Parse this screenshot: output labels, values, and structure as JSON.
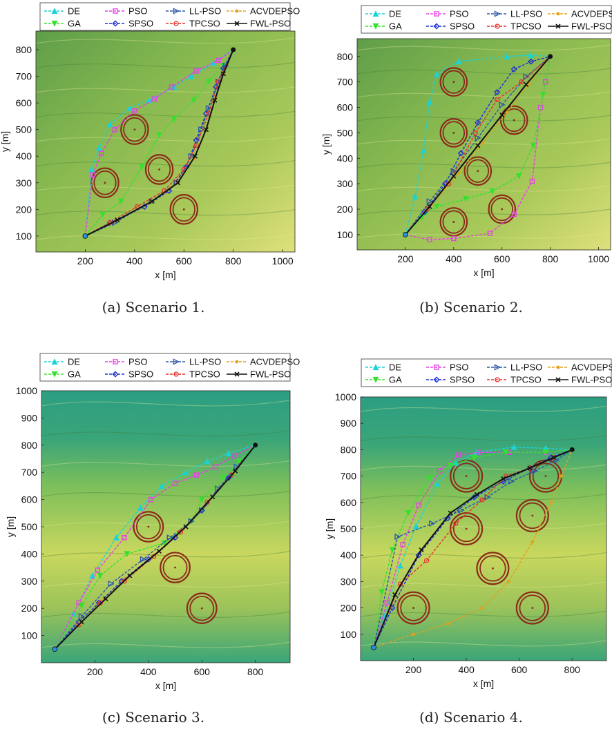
{
  "figure": {
    "legend_entries": [
      "DE",
      "PSO",
      "LL-PSO",
      "ACVDEPSO",
      "GA",
      "SPSO",
      "TPCSO",
      "FWL-PSO"
    ],
    "legend_placement": "top",
    "series_colors": {
      "DE": "#19d3d8",
      "PSO": "#e83ee6",
      "LL-PSO": "#2b57a8",
      "ACVDEPSO": "#e2a01e",
      "GA": "#38e02e",
      "SPSO": "#1f2fd8",
      "TPCSO": "#e8302a",
      "FWL-PSO": "#111111"
    },
    "series_markers": {
      "DE": "triangle-up",
      "PSO": "square",
      "LL-PSO": "triangle-right",
      "ACVDEPSO": "dot",
      "GA": "triangle-down",
      "SPSO": "diamond",
      "TPCSO": "circle",
      "FWL-PSO": "cross"
    },
    "obstacle_color": "#8b2a1a",
    "terrain_colors": [
      "#2c9e82",
      "#7cc05a",
      "#c8d65a",
      "#e9e27a"
    ]
  },
  "chart_data": [
    {
      "type": "line",
      "caption": "(a) Scenario 1.",
      "xlabel": "x [m]",
      "ylabel": "y [m]",
      "xlim": [
        0,
        1050
      ],
      "ylim": [
        40,
        870
      ],
      "xticks": [
        200,
        400,
        600,
        800,
        1000
      ],
      "yticks": [
        100,
        200,
        300,
        400,
        500,
        600,
        700,
        800
      ],
      "start": [
        200,
        100
      ],
      "goal": [
        800,
        800
      ],
      "obstacles": [
        {
          "x": 400,
          "y": 500,
          "r": 55
        },
        {
          "x": 280,
          "y": 300,
          "r": 55
        },
        {
          "x": 500,
          "y": 350,
          "r": 55
        },
        {
          "x": 600,
          "y": 200,
          "r": 55
        }
      ],
      "series": [
        {
          "name": "DE",
          "x": [
            200,
            225,
            255,
            300,
            380,
            460,
            560,
            630,
            720,
            800
          ],
          "y": [
            100,
            350,
            430,
            520,
            580,
            610,
            660,
            700,
            750,
            800
          ]
        },
        {
          "name": "PSO",
          "x": [
            200,
            230,
            265,
            320,
            400,
            480,
            550,
            650,
            740,
            800
          ],
          "y": [
            100,
            330,
            410,
            500,
            570,
            615,
            660,
            720,
            760,
            800
          ]
        },
        {
          "name": "GA",
          "x": [
            200,
            270,
            345,
            430,
            500,
            560,
            640,
            700,
            760,
            800
          ],
          "y": [
            100,
            180,
            230,
            360,
            480,
            540,
            610,
            680,
            740,
            800
          ]
        },
        {
          "name": "SPSO",
          "x": [
            200,
            300,
            440,
            540,
            610,
            650,
            690,
            730,
            760,
            800
          ],
          "y": [
            100,
            150,
            210,
            270,
            360,
            460,
            560,
            660,
            730,
            800
          ]
        },
        {
          "name": "LL-PSO",
          "x": [
            200,
            320,
            470,
            570,
            630,
            670,
            700,
            740,
            770,
            800
          ],
          "y": [
            100,
            150,
            230,
            300,
            400,
            500,
            580,
            680,
            740,
            800
          ]
        },
        {
          "name": "TPCSO",
          "x": [
            200,
            300,
            410,
            520,
            600,
            650,
            700,
            740,
            800
          ],
          "y": [
            100,
            150,
            210,
            270,
            350,
            440,
            560,
            680,
            800
          ]
        },
        {
          "name": "ACVDEPSO",
          "x": [
            200,
            330,
            470,
            570,
            640,
            690,
            730,
            760,
            800
          ],
          "y": [
            100,
            160,
            230,
            300,
            390,
            500,
            620,
            710,
            800
          ]
        },
        {
          "name": "FWL-PSO",
          "x": [
            200,
            330,
            470,
            575,
            645,
            690,
            725,
            760,
            800
          ],
          "y": [
            100,
            160,
            230,
            300,
            400,
            500,
            610,
            710,
            800
          ]
        }
      ]
    },
    {
      "type": "line",
      "caption": "(b) Scenario 2.",
      "xlabel": "x [m]",
      "ylabel": "y [m]",
      "xlim": [
        0,
        1050
      ],
      "ylim": [
        40,
        870
      ],
      "xticks": [
        200,
        400,
        600,
        800,
        1000
      ],
      "yticks": [
        100,
        200,
        300,
        400,
        500,
        600,
        700,
        800
      ],
      "start": [
        200,
        100
      ],
      "goal": [
        800,
        800
      ],
      "obstacles": [
        {
          "x": 400,
          "y": 700,
          "r": 55
        },
        {
          "x": 400,
          "y": 500,
          "r": 55
        },
        {
          "x": 650,
          "y": 550,
          "r": 55
        },
        {
          "x": 500,
          "y": 350,
          "r": 55
        },
        {
          "x": 400,
          "y": 150,
          "r": 55
        },
        {
          "x": 600,
          "y": 200,
          "r": 55
        }
      ],
      "series": [
        {
          "name": "DE",
          "x": [
            200,
            240,
            275,
            300,
            330,
            420,
            620,
            720,
            800
          ],
          "y": [
            100,
            250,
            430,
            620,
            730,
            780,
            800,
            805,
            800
          ]
        },
        {
          "name": "PSO",
          "x": [
            200,
            300,
            400,
            550,
            650,
            725,
            760,
            780,
            800
          ],
          "y": [
            100,
            80,
            85,
            105,
            180,
            310,
            600,
            700,
            800
          ]
        },
        {
          "name": "GA",
          "x": [
            200,
            270,
            330,
            450,
            560,
            670,
            730,
            770,
            800
          ],
          "y": [
            100,
            170,
            210,
            240,
            270,
            330,
            450,
            650,
            800
          ]
        },
        {
          "name": "SPSO",
          "x": [
            200,
            280,
            365,
            430,
            500,
            580,
            650,
            720,
            800
          ],
          "y": [
            100,
            190,
            300,
            420,
            540,
            660,
            750,
            780,
            800
          ]
        },
        {
          "name": "LL-PSO",
          "x": [
            200,
            300,
            400,
            500,
            600,
            700,
            800
          ],
          "y": [
            100,
            230,
            350,
            480,
            610,
            720,
            800
          ]
        },
        {
          "name": "TPCSO",
          "x": [
            200,
            290,
            380,
            490,
            580,
            680,
            800
          ],
          "y": [
            100,
            200,
            300,
            500,
            630,
            700,
            800
          ]
        },
        {
          "name": "ACVDEPSO",
          "x": [
            200,
            310,
            420,
            520,
            620,
            710,
            800
          ],
          "y": [
            100,
            220,
            340,
            460,
            580,
            690,
            800
          ]
        },
        {
          "name": "FWL-PSO",
          "x": [
            200,
            300,
            400,
            500,
            600,
            700,
            800
          ],
          "y": [
            100,
            210,
            330,
            450,
            570,
            690,
            800
          ]
        }
      ]
    },
    {
      "type": "line",
      "caption": "(c) Scenario 3.",
      "xlabel": "x [m]",
      "ylabel": "y [m]",
      "xlim": [
        0,
        930
      ],
      "ylim": [
        0,
        1000
      ],
      "xticks": [
        200,
        400,
        600,
        800
      ],
      "yticks": [
        100,
        200,
        300,
        400,
        500,
        600,
        700,
        800,
        900,
        1000
      ],
      "start": [
        50,
        50
      ],
      "goal": [
        800,
        800
      ],
      "obstacles": [
        {
          "x": 400,
          "y": 500,
          "r": 55
        },
        {
          "x": 500,
          "y": 350,
          "r": 55
        },
        {
          "x": 600,
          "y": 200,
          "r": 55
        }
      ],
      "series": [
        {
          "name": "DE",
          "x": [
            50,
            120,
            190,
            280,
            370,
            450,
            540,
            620,
            700,
            800
          ],
          "y": [
            50,
            180,
            320,
            460,
            570,
            650,
            700,
            740,
            770,
            800
          ]
        },
        {
          "name": "PSO",
          "x": [
            50,
            140,
            210,
            310,
            410,
            500,
            580,
            650,
            720,
            800
          ],
          "y": [
            50,
            220,
            340,
            460,
            600,
            660,
            690,
            720,
            760,
            800
          ]
        },
        {
          "name": "GA",
          "x": [
            50,
            150,
            220,
            320,
            460,
            560,
            600,
            680,
            740,
            800
          ],
          "y": [
            50,
            210,
            320,
            400,
            440,
            520,
            600,
            680,
            740,
            800
          ]
        },
        {
          "name": "SPSO",
          "x": [
            50,
            140,
            215,
            300,
            400,
            500,
            600,
            700,
            800
          ],
          "y": [
            50,
            150,
            220,
            300,
            380,
            460,
            560,
            680,
            800
          ]
        },
        {
          "name": "LL-PSO",
          "x": [
            50,
            150,
            260,
            380,
            480,
            560,
            600,
            660,
            730,
            800
          ],
          "y": [
            50,
            170,
            290,
            380,
            460,
            520,
            560,
            640,
            720,
            800
          ]
        },
        {
          "name": "TPCSO",
          "x": [
            50,
            140,
            220,
            310,
            420,
            520,
            620,
            710,
            800
          ],
          "y": [
            50,
            140,
            220,
            300,
            390,
            480,
            590,
            690,
            800
          ]
        },
        {
          "name": "ACVDEPSO",
          "x": [
            50,
            145,
            230,
            320,
            430,
            530,
            630,
            720,
            800
          ],
          "y": [
            50,
            145,
            230,
            310,
            400,
            490,
            600,
            700,
            800
          ]
        },
        {
          "name": "FWL-PSO",
          "x": [
            50,
            150,
            240,
            330,
            440,
            540,
            640,
            725,
            800
          ],
          "y": [
            50,
            150,
            235,
            320,
            410,
            500,
            610,
            705,
            800
          ]
        }
      ]
    },
    {
      "type": "line",
      "caption": "(d) Scenario 4.",
      "xlabel": "x [m]",
      "ylabel": "y [m]",
      "xlim": [
        0,
        930
      ],
      "ylim": [
        0,
        1000
      ],
      "xticks": [
        200,
        400,
        600,
        800
      ],
      "yticks": [
        100,
        200,
        300,
        400,
        500,
        600,
        700,
        800,
        900,
        1000
      ],
      "start": [
        50,
        50
      ],
      "goal": [
        800,
        800
      ],
      "obstacles": [
        {
          "x": 400,
          "y": 700,
          "r": 60
        },
        {
          "x": 700,
          "y": 700,
          "r": 60
        },
        {
          "x": 400,
          "y": 500,
          "r": 60
        },
        {
          "x": 650,
          "y": 550,
          "r": 60
        },
        {
          "x": 500,
          "y": 350,
          "r": 60
        },
        {
          "x": 200,
          "y": 200,
          "r": 60
        },
        {
          "x": 650,
          "y": 200,
          "r": 60
        }
      ],
      "series": [
        {
          "name": "DE",
          "x": [
            50,
            90,
            150,
            210,
            290,
            360,
            440,
            580,
            700,
            800
          ],
          "y": [
            50,
            170,
            360,
            510,
            670,
            750,
            790,
            810,
            805,
            800
          ]
        },
        {
          "name": "PSO",
          "x": [
            50,
            100,
            160,
            220,
            300,
            370,
            450,
            560,
            700,
            800
          ],
          "y": [
            50,
            220,
            440,
            590,
            720,
            780,
            790,
            790,
            790,
            800
          ]
        },
        {
          "name": "GA",
          "x": [
            50,
            80,
            120,
            180,
            260,
            340,
            430,
            550,
            700,
            800
          ],
          "y": [
            50,
            260,
            420,
            560,
            690,
            740,
            770,
            790,
            790,
            800
          ]
        },
        {
          "name": "SPSO",
          "x": [
            50,
            120,
            220,
            330,
            430,
            540,
            640,
            720,
            800
          ],
          "y": [
            50,
            200,
            400,
            540,
            620,
            680,
            730,
            770,
            800
          ]
        },
        {
          "name": "LL-PSO",
          "x": [
            50,
            140,
            270,
            380,
            480,
            570,
            660,
            740,
            800
          ],
          "y": [
            50,
            470,
            520,
            570,
            620,
            680,
            720,
            760,
            800
          ]
        },
        {
          "name": "TPCSO",
          "x": [
            50,
            150,
            250,
            360,
            460,
            550,
            640,
            730,
            800
          ],
          "y": [
            50,
            290,
            380,
            520,
            610,
            700,
            730,
            770,
            800
          ]
        },
        {
          "name": "ACVDEPSO",
          "x": [
            50,
            200,
            330,
            460,
            560,
            650,
            720,
            760,
            800
          ],
          "y": [
            50,
            100,
            140,
            200,
            300,
            450,
            600,
            700,
            800
          ]
        },
        {
          "name": "FWL-PSO",
          "x": [
            50,
            130,
            230,
            340,
            440,
            540,
            640,
            730,
            800
          ],
          "y": [
            50,
            250,
            420,
            560,
            630,
            690,
            730,
            770,
            800
          ]
        }
      ]
    }
  ]
}
